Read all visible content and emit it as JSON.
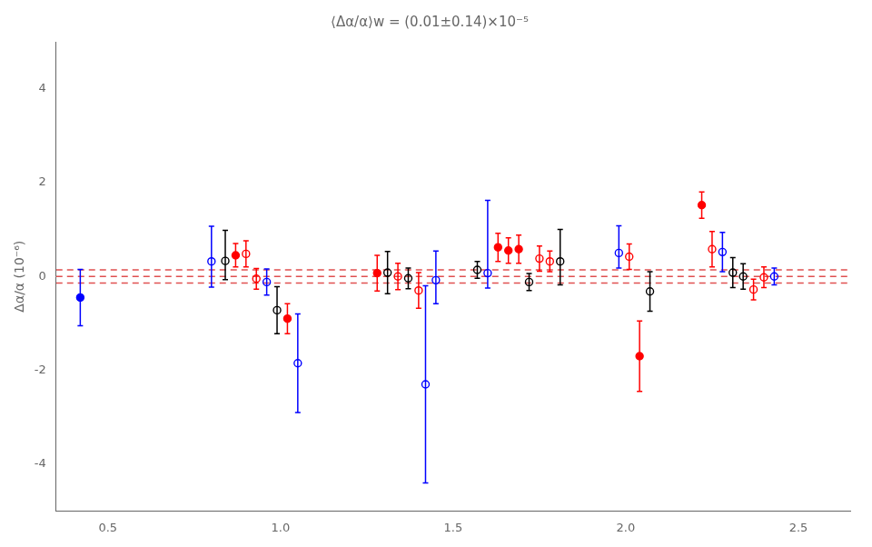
{
  "chart_data": {
    "type": "scatter",
    "title": "⟨Δα/α⟩w = (0.01±0.14)×10⁻⁵",
    "ylabel": "Δα/α (10⁻⁶)",
    "xlim": [
      0.35,
      2.65
    ],
    "ylim": [
      -5.0,
      5.0
    ],
    "xticks": [
      0.5,
      {
        "value": 1.0,
        "label": "1.0"
      },
      1.5,
      {
        "value": 2.0,
        "label": "2.0"
      },
      2.5
    ],
    "yticks": [
      -4,
      -2,
      0,
      2,
      4
    ],
    "grid": false,
    "x": [
      0.42,
      0.8,
      0.84,
      0.87,
      0.9,
      0.93,
      0.96,
      0.99,
      1.02,
      1.05,
      1.28,
      1.31,
      1.34,
      1.37,
      1.4,
      1.42,
      1.45,
      1.57,
      1.6,
      1.63,
      1.66,
      1.69,
      1.72,
      1.75,
      1.78,
      1.81,
      1.98,
      2.01,
      2.04,
      2.07,
      2.22,
      2.25,
      2.28,
      2.31,
      2.34,
      2.37,
      2.4,
      2.43
    ],
    "values": [
      -0.45,
      0.32,
      0.33,
      0.45,
      0.48,
      -0.05,
      -0.12,
      -0.72,
      -0.9,
      -1.85,
      0.07,
      0.08,
      0.0,
      -0.04,
      -0.3,
      -2.3,
      -0.08,
      0.14,
      0.07,
      0.62,
      0.55,
      0.58,
      -0.12,
      0.38,
      0.32,
      0.32,
      0.5,
      0.42,
      -1.7,
      -0.32,
      1.52,
      0.58,
      0.52,
      0.08,
      0.0,
      -0.28,
      -0.02,
      0.0
    ],
    "error_minus": [
      0.6,
      0.55,
      0.4,
      0.25,
      0.28,
      0.22,
      0.28,
      0.5,
      0.32,
      1.05,
      0.38,
      0.45,
      0.28,
      0.22,
      0.38,
      2.1,
      0.5,
      0.18,
      0.32,
      0.3,
      0.27,
      0.3,
      0.18,
      0.27,
      0.22,
      0.5,
      0.32,
      0.27,
      0.75,
      0.42,
      0.28,
      0.38,
      0.42,
      0.32,
      0.27,
      0.22,
      0.22,
      0.18
    ],
    "error_plus": [
      0.6,
      0.75,
      0.65,
      0.25,
      0.28,
      0.22,
      0.28,
      0.5,
      0.32,
      1.05,
      0.38,
      0.45,
      0.28,
      0.22,
      0.38,
      2.1,
      0.62,
      0.18,
      1.55,
      0.3,
      0.27,
      0.3,
      0.18,
      0.27,
      0.22,
      0.68,
      0.58,
      0.27,
      0.75,
      0.42,
      0.28,
      0.38,
      0.42,
      0.32,
      0.27,
      0.22,
      0.22,
      0.18
    ],
    "colors": [
      "blue",
      "blue",
      "black",
      "red",
      "red",
      "red",
      "blue",
      "black",
      "red",
      "blue",
      "red",
      "black",
      "red",
      "black",
      "red",
      "blue",
      "blue",
      "black",
      "blue",
      "red",
      "red",
      "red",
      "black",
      "red",
      "red",
      "black",
      "blue",
      "red",
      "red",
      "black",
      "red",
      "red",
      "blue",
      "black",
      "black",
      "red",
      "red",
      "blue"
    ],
    "markers": [
      "filled_circle",
      "open_circle",
      "open_circle",
      "filled_circle",
      "open_circle",
      "open_circle",
      "open_circle",
      "open_circle",
      "filled_circle",
      "open_circle",
      "filled_circle",
      "open_circle",
      "open_circle",
      "open_circle",
      "open_circle",
      "open_circle",
      "open_circle",
      "open_circle",
      "open_circle",
      "filled_circle",
      "filled_circle",
      "filled_circle",
      "open_circle",
      "open_circle",
      "open_circle",
      "open_circle",
      "open_circle",
      "open_circle",
      "filled_circle",
      "open_circle",
      "filled_circle",
      "open_circle",
      "open_circle",
      "open_circle",
      "open_circle",
      "open_circle",
      "open_circle",
      "open_circle"
    ],
    "hlines": [
      {
        "value": 0.14,
        "color": "#e05050",
        "line_style": "dashed"
      },
      {
        "value": 0.0,
        "color": "#e05050",
        "line_style": "dashed"
      },
      {
        "value": -0.14,
        "color": "#e05050",
        "line_style": "dashed"
      }
    ]
  }
}
